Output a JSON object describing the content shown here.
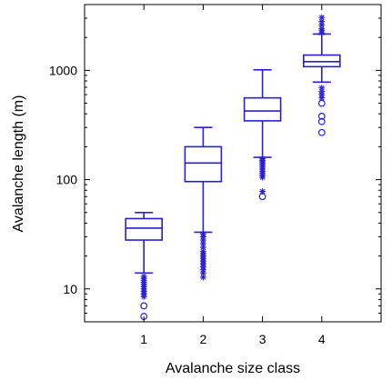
{
  "chart_data": {
    "type": "box",
    "xlabel": "Avalanche size class",
    "ylabel": "Avalanche length (m)",
    "y_scale": "log",
    "ylim": [
      5,
      4000
    ],
    "xlim": [
      0,
      5
    ],
    "grid": false,
    "series_color": "#2a1fd0",
    "y_ticks": [
      {
        "value": 10,
        "label": "10"
      },
      {
        "value": 100,
        "label": "100"
      },
      {
        "value": 1000,
        "label": "1000"
      }
    ],
    "categories": [
      "1",
      "2",
      "3",
      "4"
    ],
    "boxes": [
      {
        "category": "1",
        "whisker_low": 14,
        "q1": 28,
        "median": 36,
        "q3": 44,
        "whisker_high": 50,
        "outliers_star": [
          13,
          12.5,
          12,
          11.5,
          11,
          10.5,
          10,
          9.5,
          9,
          8.5
        ],
        "outliers_circle": [
          7,
          5.6
        ]
      },
      {
        "category": "2",
        "whisker_low": 33,
        "q1": 96,
        "median": 142,
        "q3": 200,
        "whisker_high": 300,
        "outliers_star": [
          32,
          30,
          28,
          26,
          24,
          22,
          21,
          20,
          19,
          18,
          17,
          16,
          15,
          14,
          12.8
        ],
        "outliers_circle": []
      },
      {
        "category": "3",
        "whisker_low": 160,
        "q1": 345,
        "median": 425,
        "q3": 560,
        "whisker_high": 1010,
        "outliers_star": [
          155,
          150,
          145,
          140,
          135,
          130,
          125,
          120,
          115,
          110,
          105,
          78
        ],
        "outliers_circle": [
          70
        ]
      },
      {
        "category": "4",
        "whisker_low": 780,
        "q1": 1080,
        "median": 1200,
        "q3": 1380,
        "whisker_high": 2150,
        "outliers_star": [
          2200,
          2300,
          2400,
          2600,
          2800,
          3050,
          690,
          640,
          600,
          560
        ],
        "outliers_circle": [
          500,
          380,
          340,
          270
        ]
      }
    ]
  }
}
